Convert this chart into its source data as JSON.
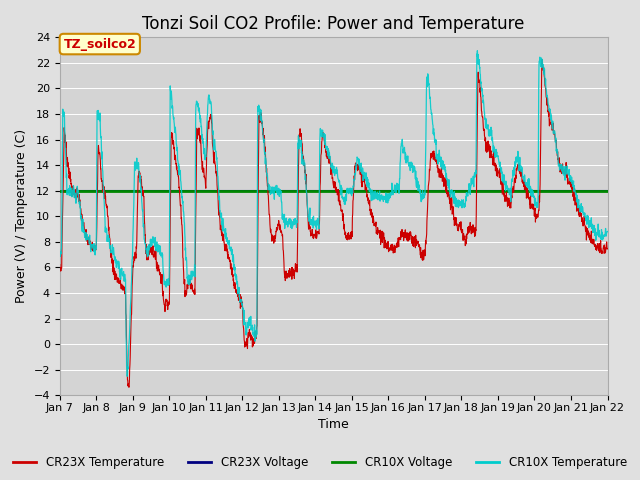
{
  "title": "Tonzi Soil CO2 Profile: Power and Temperature",
  "xlabel": "Time",
  "ylabel": "Power (V) / Temperature (C)",
  "ylim": [
    -4,
    24
  ],
  "yticks": [
    -4,
    -2,
    0,
    2,
    4,
    6,
    8,
    10,
    12,
    14,
    16,
    18,
    20,
    22,
    24
  ],
  "xlim_start": 7,
  "xlim_end": 22,
  "xtick_labels": [
    "Jan 7",
    "Jan 8",
    "Jan 9",
    "Jan 10",
    "Jan 11",
    "Jan 12",
    "Jan 13",
    "Jan 14",
    "Jan 15",
    "Jan 16",
    "Jan 17",
    "Jan 18",
    "Jan 19",
    "Jan 20",
    "Jan 21",
    "Jan 22"
  ],
  "cr23x_temp_color": "#cc0000",
  "cr23x_volt_color": "#000080",
  "cr10x_volt_color": "#008800",
  "cr10x_temp_color": "#00cccc",
  "green_line_y": 12,
  "fig_bg_color": "#e0e0e0",
  "plot_bg_color": "#d4d4d4",
  "annotation_text": "TZ_soilco2",
  "annotation_bg": "#ffffcc",
  "annotation_border": "#cc8800",
  "legend_items": [
    "CR23X Temperature",
    "CR23X Voltage",
    "CR10X Voltage",
    "CR10X Temperature"
  ],
  "legend_colors": [
    "#cc0000",
    "#000080",
    "#008800",
    "#00cccc"
  ],
  "title_fontsize": 12,
  "label_fontsize": 9,
  "tick_fontsize": 8,
  "red_key_points": [
    [
      7.0,
      5.8
    ],
    [
      7.05,
      6.0
    ],
    [
      7.12,
      16.8
    ],
    [
      7.2,
      14.5
    ],
    [
      7.35,
      11.8
    ],
    [
      7.5,
      11.8
    ],
    [
      7.6,
      10.0
    ],
    [
      7.7,
      8.5
    ],
    [
      7.8,
      8.0
    ],
    [
      7.9,
      7.5
    ],
    [
      8.0,
      7.5
    ],
    [
      8.05,
      15.5
    ],
    [
      8.1,
      15.0
    ],
    [
      8.15,
      12.5
    ],
    [
      8.25,
      11.5
    ],
    [
      8.3,
      10.5
    ],
    [
      8.4,
      7.0
    ],
    [
      8.5,
      5.5
    ],
    [
      8.6,
      5.0
    ],
    [
      8.7,
      4.5
    ],
    [
      8.8,
      4.0
    ],
    [
      8.85,
      -2.6
    ],
    [
      8.9,
      -3.5
    ],
    [
      9.0,
      6.0
    ],
    [
      9.1,
      7.5
    ],
    [
      9.15,
      13.5
    ],
    [
      9.2,
      13.0
    ],
    [
      9.3,
      11.5
    ],
    [
      9.35,
      7.5
    ],
    [
      9.4,
      6.5
    ],
    [
      9.45,
      7.5
    ],
    [
      9.5,
      7.5
    ],
    [
      9.6,
      7.0
    ],
    [
      9.65,
      6.5
    ],
    [
      9.7,
      6.0
    ],
    [
      9.8,
      5.0
    ],
    [
      9.85,
      3.0
    ],
    [
      9.9,
      3.5
    ],
    [
      10.0,
      2.8
    ],
    [
      10.05,
      16.5
    ],
    [
      10.1,
      16.0
    ],
    [
      10.15,
      15.0
    ],
    [
      10.25,
      13.0
    ],
    [
      10.3,
      11.0
    ],
    [
      10.35,
      9.0
    ],
    [
      10.4,
      5.0
    ],
    [
      10.45,
      4.0
    ],
    [
      10.5,
      4.5
    ],
    [
      10.55,
      5.0
    ],
    [
      10.6,
      4.5
    ],
    [
      10.7,
      4.0
    ],
    [
      10.75,
      16.5
    ],
    [
      10.8,
      16.7
    ],
    [
      10.85,
      16.2
    ],
    [
      10.9,
      14.0
    ],
    [
      11.0,
      12.5
    ],
    [
      11.05,
      17.0
    ],
    [
      11.1,
      17.5
    ],
    [
      11.15,
      18.0
    ],
    [
      11.2,
      15.0
    ],
    [
      11.3,
      13.0
    ],
    [
      11.35,
      10.5
    ],
    [
      11.4,
      9.0
    ],
    [
      11.5,
      8.0
    ],
    [
      11.55,
      7.5
    ],
    [
      11.6,
      7.0
    ],
    [
      11.7,
      6.0
    ],
    [
      11.75,
      5.0
    ],
    [
      11.8,
      4.5
    ],
    [
      11.85,
      4.0
    ],
    [
      11.9,
      3.5
    ],
    [
      12.0,
      3.2
    ],
    [
      12.05,
      0.3
    ],
    [
      12.1,
      0.0
    ],
    [
      12.15,
      0.5
    ],
    [
      12.2,
      1.0
    ],
    [
      12.25,
      0.5
    ],
    [
      12.3,
      -0.1
    ],
    [
      12.4,
      1.0
    ],
    [
      12.45,
      17.5
    ],
    [
      12.5,
      18.0
    ],
    [
      12.55,
      17.0
    ],
    [
      12.6,
      16.0
    ],
    [
      12.65,
      14.0
    ],
    [
      12.7,
      12.0
    ],
    [
      12.75,
      9.5
    ],
    [
      12.8,
      8.5
    ],
    [
      12.85,
      8.0
    ],
    [
      12.9,
      8.5
    ],
    [
      12.95,
      9.0
    ],
    [
      13.0,
      9.5
    ],
    [
      13.05,
      9.0
    ],
    [
      13.1,
      8.5
    ],
    [
      13.15,
      5.5
    ],
    [
      13.2,
      5.5
    ],
    [
      13.3,
      5.5
    ],
    [
      13.35,
      5.5
    ],
    [
      13.4,
      5.5
    ],
    [
      13.5,
      6.0
    ],
    [
      13.55,
      16.5
    ],
    [
      13.6,
      16.5
    ],
    [
      13.65,
      15.0
    ],
    [
      13.7,
      14.0
    ],
    [
      13.75,
      12.5
    ],
    [
      13.8,
      9.5
    ],
    [
      13.85,
      9.0
    ],
    [
      13.9,
      8.5
    ],
    [
      14.0,
      8.5
    ],
    [
      14.1,
      8.5
    ],
    [
      14.15,
      14.5
    ],
    [
      14.2,
      16.5
    ],
    [
      14.3,
      15.0
    ],
    [
      14.4,
      14.0
    ],
    [
      14.5,
      12.5
    ],
    [
      14.6,
      12.0
    ],
    [
      14.65,
      11.5
    ],
    [
      14.7,
      10.5
    ],
    [
      14.8,
      9.0
    ],
    [
      14.85,
      8.5
    ],
    [
      14.9,
      8.5
    ],
    [
      15.0,
      8.5
    ],
    [
      15.05,
      12.5
    ],
    [
      15.1,
      14.5
    ],
    [
      15.15,
      14.0
    ],
    [
      15.2,
      13.5
    ],
    [
      15.3,
      13.0
    ],
    [
      15.4,
      12.0
    ],
    [
      15.5,
      10.5
    ],
    [
      15.6,
      9.5
    ],
    [
      15.7,
      9.0
    ],
    [
      15.8,
      8.5
    ],
    [
      15.9,
      8.0
    ],
    [
      16.0,
      7.5
    ],
    [
      16.1,
      7.5
    ],
    [
      16.2,
      7.5
    ],
    [
      16.3,
      8.0
    ],
    [
      16.35,
      8.5
    ],
    [
      16.4,
      8.5
    ],
    [
      16.5,
      8.5
    ],
    [
      16.6,
      8.5
    ],
    [
      16.7,
      8.0
    ],
    [
      16.8,
      8.0
    ],
    [
      16.85,
      7.5
    ],
    [
      16.9,
      7.0
    ],
    [
      17.0,
      7.0
    ],
    [
      17.05,
      9.0
    ],
    [
      17.1,
      12.5
    ],
    [
      17.15,
      14.5
    ],
    [
      17.2,
      15.0
    ],
    [
      17.3,
      14.5
    ],
    [
      17.35,
      14.0
    ],
    [
      17.4,
      13.5
    ],
    [
      17.5,
      13.0
    ],
    [
      17.55,
      12.5
    ],
    [
      17.6,
      12.0
    ],
    [
      17.65,
      11.5
    ],
    [
      17.7,
      11.0
    ],
    [
      17.8,
      10.0
    ],
    [
      17.85,
      9.5
    ],
    [
      17.9,
      9.0
    ],
    [
      18.0,
      9.0
    ],
    [
      18.05,
      8.5
    ],
    [
      18.1,
      8.0
    ],
    [
      18.15,
      8.5
    ],
    [
      18.2,
      9.0
    ],
    [
      18.3,
      9.0
    ],
    [
      18.35,
      9.0
    ],
    [
      18.4,
      9.0
    ],
    [
      18.45,
      21.0
    ],
    [
      18.5,
      20.5
    ],
    [
      18.55,
      18.5
    ],
    [
      18.6,
      17.0
    ],
    [
      18.65,
      16.0
    ],
    [
      18.7,
      15.5
    ],
    [
      18.8,
      15.0
    ],
    [
      18.85,
      14.5
    ],
    [
      18.9,
      14.0
    ],
    [
      19.0,
      13.5
    ],
    [
      19.05,
      13.0
    ],
    [
      19.1,
      12.5
    ],
    [
      19.15,
      12.0
    ],
    [
      19.2,
      11.5
    ],
    [
      19.3,
      11.0
    ],
    [
      19.35,
      11.0
    ],
    [
      19.4,
      12.0
    ],
    [
      19.5,
      13.5
    ],
    [
      19.55,
      14.0
    ],
    [
      19.6,
      13.5
    ],
    [
      19.65,
      13.0
    ],
    [
      19.7,
      12.5
    ],
    [
      19.8,
      12.0
    ],
    [
      19.85,
      11.5
    ],
    [
      19.9,
      11.0
    ],
    [
      20.0,
      10.5
    ],
    [
      20.05,
      10.0
    ],
    [
      20.1,
      10.0
    ],
    [
      20.15,
      12.0
    ],
    [
      20.2,
      22.0
    ],
    [
      20.25,
      21.5
    ],
    [
      20.3,
      20.0
    ],
    [
      20.35,
      19.0
    ],
    [
      20.4,
      17.5
    ],
    [
      20.5,
      17.0
    ],
    [
      20.55,
      16.5
    ],
    [
      20.6,
      15.5
    ],
    [
      20.65,
      14.5
    ],
    [
      20.7,
      14.0
    ],
    [
      20.8,
      13.5
    ],
    [
      20.85,
      13.5
    ],
    [
      20.9,
      13.0
    ],
    [
      21.0,
      12.5
    ],
    [
      21.05,
      12.0
    ],
    [
      21.1,
      11.5
    ],
    [
      21.15,
      11.0
    ],
    [
      21.2,
      10.5
    ],
    [
      21.3,
      10.0
    ],
    [
      21.35,
      9.5
    ],
    [
      21.4,
      9.0
    ],
    [
      21.5,
      8.5
    ],
    [
      21.6,
      8.0
    ],
    [
      21.7,
      7.5
    ],
    [
      21.8,
      7.5
    ],
    [
      21.9,
      7.5
    ],
    [
      22.0,
      7.5
    ]
  ],
  "cyan_key_points": [
    [
      7.0,
      7.0
    ],
    [
      7.05,
      7.2
    ],
    [
      7.08,
      18.5
    ],
    [
      7.12,
      18.0
    ],
    [
      7.2,
      12.0
    ],
    [
      7.3,
      12.0
    ],
    [
      7.4,
      11.8
    ],
    [
      7.5,
      11.8
    ],
    [
      7.6,
      9.5
    ],
    [
      7.7,
      8.5
    ],
    [
      7.8,
      8.0
    ],
    [
      7.9,
      7.5
    ],
    [
      8.0,
      7.5
    ],
    [
      8.02,
      18.0
    ],
    [
      8.05,
      18.0
    ],
    [
      8.1,
      17.5
    ],
    [
      8.15,
      15.0
    ],
    [
      8.25,
      9.0
    ],
    [
      8.3,
      8.5
    ],
    [
      8.4,
      7.5
    ],
    [
      8.5,
      7.0
    ],
    [
      8.6,
      6.0
    ],
    [
      8.7,
      5.5
    ],
    [
      8.8,
      5.0
    ],
    [
      8.83,
      -2.0
    ],
    [
      8.85,
      -2.5
    ],
    [
      8.9,
      0.0
    ],
    [
      9.0,
      8.0
    ],
    [
      9.05,
      14.0
    ],
    [
      9.1,
      14.0
    ],
    [
      9.15,
      14.0
    ],
    [
      9.2,
      13.0
    ],
    [
      9.3,
      9.0
    ],
    [
      9.35,
      7.5
    ],
    [
      9.4,
      7.0
    ],
    [
      9.45,
      7.5
    ],
    [
      9.5,
      8.0
    ],
    [
      9.6,
      8.0
    ],
    [
      9.7,
      7.5
    ],
    [
      9.8,
      7.0
    ],
    [
      9.85,
      5.0
    ],
    [
      9.9,
      4.5
    ],
    [
      10.0,
      5.0
    ],
    [
      10.02,
      20.0
    ],
    [
      10.05,
      19.5
    ],
    [
      10.1,
      18.0
    ],
    [
      10.15,
      17.0
    ],
    [
      10.25,
      14.0
    ],
    [
      10.3,
      13.0
    ],
    [
      10.35,
      11.5
    ],
    [
      10.4,
      10.0
    ],
    [
      10.45,
      7.0
    ],
    [
      10.5,
      5.0
    ],
    [
      10.55,
      5.0
    ],
    [
      10.6,
      5.5
    ],
    [
      10.7,
      5.5
    ],
    [
      10.72,
      18.0
    ],
    [
      10.75,
      19.0
    ],
    [
      10.8,
      18.5
    ],
    [
      10.85,
      17.5
    ],
    [
      10.9,
      16.0
    ],
    [
      11.0,
      14.5
    ],
    [
      11.05,
      18.5
    ],
    [
      11.08,
      19.5
    ],
    [
      11.1,
      19.0
    ],
    [
      11.15,
      18.5
    ],
    [
      11.2,
      16.0
    ],
    [
      11.3,
      14.5
    ],
    [
      11.35,
      12.0
    ],
    [
      11.4,
      10.0
    ],
    [
      11.5,
      9.0
    ],
    [
      11.55,
      8.5
    ],
    [
      11.6,
      8.0
    ],
    [
      11.7,
      7.5
    ],
    [
      11.75,
      6.5
    ],
    [
      11.8,
      5.5
    ],
    [
      11.85,
      5.0
    ],
    [
      11.9,
      4.0
    ],
    [
      12.0,
      3.0
    ],
    [
      12.05,
      2.0
    ],
    [
      12.1,
      1.0
    ],
    [
      12.15,
      1.5
    ],
    [
      12.2,
      2.0
    ],
    [
      12.3,
      1.0
    ],
    [
      12.35,
      0.5
    ],
    [
      12.4,
      1.0
    ],
    [
      12.42,
      18.8
    ],
    [
      12.45,
      18.5
    ],
    [
      12.5,
      18.0
    ],
    [
      12.55,
      17.0
    ],
    [
      12.6,
      15.5
    ],
    [
      12.65,
      14.0
    ],
    [
      12.7,
      12.5
    ],
    [
      12.75,
      12.0
    ],
    [
      12.8,
      12.0
    ],
    [
      12.85,
      12.0
    ],
    [
      12.9,
      12.0
    ],
    [
      13.0,
      12.0
    ],
    [
      13.05,
      12.0
    ],
    [
      13.1,
      10.0
    ],
    [
      13.15,
      9.5
    ],
    [
      13.2,
      9.5
    ],
    [
      13.3,
      9.5
    ],
    [
      13.4,
      9.5
    ],
    [
      13.5,
      9.5
    ],
    [
      13.52,
      15.5
    ],
    [
      13.55,
      16.0
    ],
    [
      13.6,
      15.5
    ],
    [
      13.65,
      14.5
    ],
    [
      13.7,
      14.0
    ],
    [
      13.75,
      12.5
    ],
    [
      13.8,
      10.0
    ],
    [
      13.85,
      10.0
    ],
    [
      13.9,
      9.5
    ],
    [
      14.0,
      9.5
    ],
    [
      14.1,
      9.5
    ],
    [
      14.12,
      16.5
    ],
    [
      14.15,
      16.5
    ],
    [
      14.2,
      16.5
    ],
    [
      14.3,
      15.5
    ],
    [
      14.4,
      14.5
    ],
    [
      14.5,
      13.5
    ],
    [
      14.6,
      13.5
    ],
    [
      14.65,
      12.5
    ],
    [
      14.7,
      12.0
    ],
    [
      14.8,
      11.0
    ],
    [
      14.85,
      12.0
    ],
    [
      14.9,
      12.0
    ],
    [
      15.0,
      12.0
    ],
    [
      15.05,
      12.5
    ],
    [
      15.1,
      13.5
    ],
    [
      15.15,
      14.5
    ],
    [
      15.2,
      14.0
    ],
    [
      15.3,
      13.5
    ],
    [
      15.4,
      13.0
    ],
    [
      15.5,
      12.0
    ],
    [
      15.6,
      11.5
    ],
    [
      15.7,
      11.5
    ],
    [
      15.8,
      11.5
    ],
    [
      15.9,
      11.5
    ],
    [
      16.0,
      11.5
    ],
    [
      16.1,
      12.0
    ],
    [
      16.2,
      12.0
    ],
    [
      16.3,
      12.5
    ],
    [
      16.35,
      16.0
    ],
    [
      16.4,
      15.5
    ],
    [
      16.5,
      14.5
    ],
    [
      16.6,
      14.0
    ],
    [
      16.7,
      13.5
    ],
    [
      16.8,
      12.5
    ],
    [
      16.85,
      12.0
    ],
    [
      16.9,
      11.5
    ],
    [
      17.0,
      11.5
    ],
    [
      17.05,
      21.0
    ],
    [
      17.08,
      21.0
    ],
    [
      17.1,
      20.5
    ],
    [
      17.15,
      19.0
    ],
    [
      17.2,
      17.5
    ],
    [
      17.3,
      15.5
    ],
    [
      17.35,
      14.5
    ],
    [
      17.4,
      14.5
    ],
    [
      17.5,
      14.0
    ],
    [
      17.55,
      13.5
    ],
    [
      17.6,
      13.0
    ],
    [
      17.65,
      12.5
    ],
    [
      17.7,
      12.0
    ],
    [
      17.8,
      11.5
    ],
    [
      17.85,
      11.0
    ],
    [
      17.9,
      11.0
    ],
    [
      18.0,
      11.0
    ],
    [
      18.05,
      11.0
    ],
    [
      18.1,
      11.0
    ],
    [
      18.2,
      12.0
    ],
    [
      18.3,
      12.5
    ],
    [
      18.35,
      13.0
    ],
    [
      18.4,
      13.5
    ],
    [
      18.42,
      23.0
    ],
    [
      18.45,
      22.5
    ],
    [
      18.5,
      21.5
    ],
    [
      18.55,
      20.0
    ],
    [
      18.6,
      19.0
    ],
    [
      18.65,
      17.5
    ],
    [
      18.7,
      17.0
    ],
    [
      18.8,
      16.5
    ],
    [
      18.85,
      16.0
    ],
    [
      18.9,
      15.0
    ],
    [
      19.0,
      14.5
    ],
    [
      19.05,
      14.0
    ],
    [
      19.1,
      13.5
    ],
    [
      19.15,
      13.0
    ],
    [
      19.2,
      12.5
    ],
    [
      19.3,
      12.0
    ],
    [
      19.35,
      12.0
    ],
    [
      19.4,
      13.0
    ],
    [
      19.5,
      14.5
    ],
    [
      19.55,
      14.5
    ],
    [
      19.6,
      14.0
    ],
    [
      19.65,
      13.5
    ],
    [
      19.7,
      13.0
    ],
    [
      19.8,
      12.5
    ],
    [
      19.9,
      12.0
    ],
    [
      20.0,
      11.5
    ],
    [
      20.05,
      11.0
    ],
    [
      20.1,
      11.0
    ],
    [
      20.12,
      22.0
    ],
    [
      20.15,
      22.0
    ],
    [
      20.2,
      22.0
    ],
    [
      20.25,
      21.5
    ],
    [
      20.3,
      20.5
    ],
    [
      20.35,
      19.5
    ],
    [
      20.4,
      18.5
    ],
    [
      20.5,
      17.0
    ],
    [
      20.55,
      16.5
    ],
    [
      20.6,
      15.5
    ],
    [
      20.65,
      14.5
    ],
    [
      20.7,
      14.0
    ],
    [
      20.8,
      13.5
    ],
    [
      20.85,
      13.5
    ],
    [
      20.9,
      13.5
    ],
    [
      21.0,
      13.0
    ],
    [
      21.05,
      12.5
    ],
    [
      21.1,
      12.0
    ],
    [
      21.15,
      11.5
    ],
    [
      21.2,
      11.0
    ],
    [
      21.3,
      10.5
    ],
    [
      21.4,
      10.0
    ],
    [
      21.5,
      9.5
    ],
    [
      21.6,
      9.0
    ],
    [
      21.7,
      8.5
    ],
    [
      21.8,
      8.5
    ],
    [
      21.9,
      8.5
    ],
    [
      22.0,
      8.5
    ]
  ]
}
